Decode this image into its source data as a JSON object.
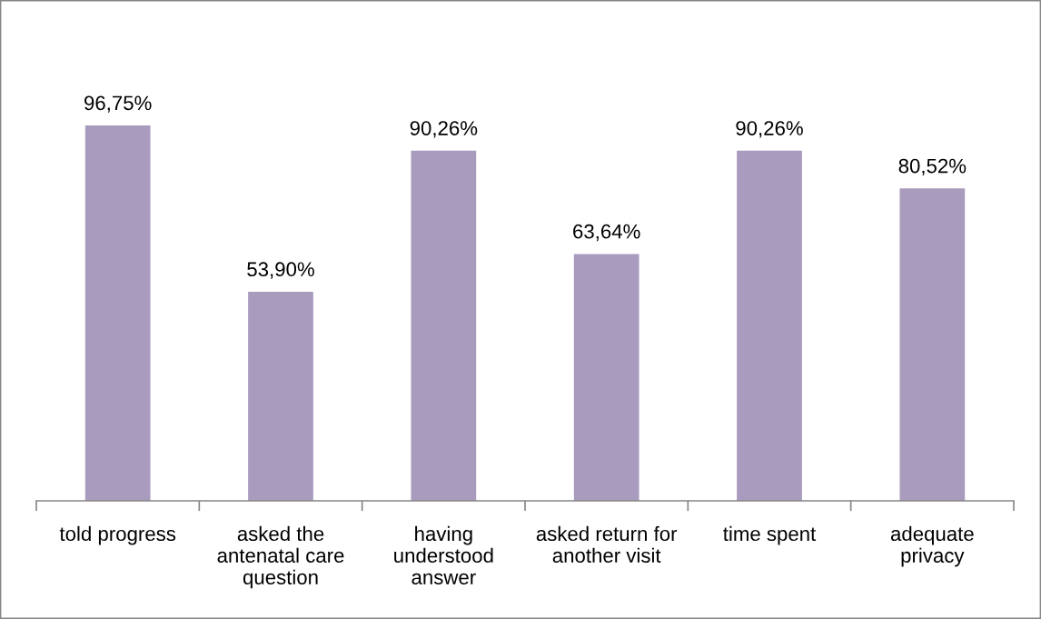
{
  "chart_data": {
    "type": "bar",
    "categories": [
      "told progress",
      "asked the antenatal care question",
      "having understood answer",
      "asked return for another visit",
      "time spent",
      "adequate privacy"
    ],
    "values": [
      96.75,
      53.9,
      90.26,
      63.64,
      90.26,
      80.52
    ],
    "value_labels": [
      "96,75%",
      "53,90%",
      "90,26%",
      "63,64%",
      "90,26%",
      "80,52%"
    ],
    "color": "#a99bbd",
    "tick_labels": "x"
  }
}
